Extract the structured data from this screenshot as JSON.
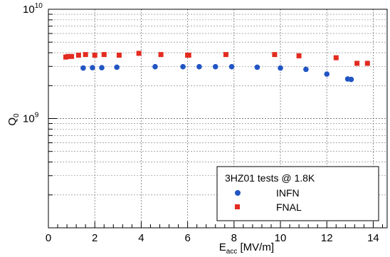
{
  "chart_data": {
    "type": "scatter",
    "xlabel": {
      "main": "E",
      "sub": "acc",
      "rest": " [MV/m]"
    },
    "ylabel": {
      "main": "Q",
      "sub": "0"
    },
    "xlim": [
      0,
      14.6
    ],
    "ylim": [
      100000000.0,
      10000000000.0
    ],
    "yscale": "log",
    "grid": true,
    "x_ticks": [
      0,
      2,
      4,
      6,
      8,
      10,
      12,
      14
    ],
    "x_tick_labels": [
      "0",
      "2",
      "4",
      "6",
      "8",
      "10",
      "12",
      "14"
    ],
    "y_tick_labels": [
      {
        "value": 1000000000.0,
        "base": "10",
        "exp": "9"
      },
      {
        "value": 10000000000.0,
        "base": "10",
        "exp": "10"
      }
    ],
    "legend": {
      "title": "3HZ01 tests @ 1.8K",
      "position": "bottom-right",
      "entries": [
        {
          "label": "INFN",
          "series": 0
        },
        {
          "label": "FNAL",
          "series": 1
        }
      ]
    },
    "series": [
      {
        "name": "INFN",
        "marker": "circle",
        "color": "#2255c4",
        "points": [
          [
            1.5,
            2900000000.0
          ],
          [
            1.9,
            2920000000.0
          ],
          [
            2.3,
            2920000000.0
          ],
          [
            2.95,
            2950000000.0
          ],
          [
            4.6,
            2980000000.0
          ],
          [
            5.8,
            2980000000.0
          ],
          [
            6.5,
            2980000000.0
          ],
          [
            7.2,
            2980000000.0
          ],
          [
            7.9,
            2980000000.0
          ],
          [
            9.0,
            2950000000.0
          ],
          [
            10.0,
            2900000000.0
          ],
          [
            11.1,
            2820000000.0
          ],
          [
            12.0,
            2550000000.0
          ],
          [
            12.9,
            2300000000.0
          ],
          [
            13.05,
            2280000000.0
          ]
        ]
      },
      {
        "name": "FNAL",
        "marker": "square",
        "color": "#e32b20",
        "points": [
          [
            0.75,
            3650000000.0
          ],
          [
            0.85,
            3700000000.0
          ],
          [
            1.0,
            3700000000.0
          ],
          [
            1.3,
            3800000000.0
          ],
          [
            1.6,
            3850000000.0
          ],
          [
            2.0,
            3800000000.0
          ],
          [
            2.4,
            3850000000.0
          ],
          [
            3.05,
            3800000000.0
          ],
          [
            3.9,
            3950000000.0
          ],
          [
            4.85,
            3850000000.0
          ],
          [
            6.0,
            3800000000.0
          ],
          [
            6.05,
            3800000000.0
          ],
          [
            7.65,
            3850000000.0
          ],
          [
            9.75,
            3850000000.0
          ],
          [
            10.8,
            3750000000.0
          ],
          [
            12.4,
            3600000000.0
          ],
          [
            13.3,
            3200000000.0
          ],
          [
            13.75,
            3200000000.0
          ]
        ]
      }
    ]
  }
}
